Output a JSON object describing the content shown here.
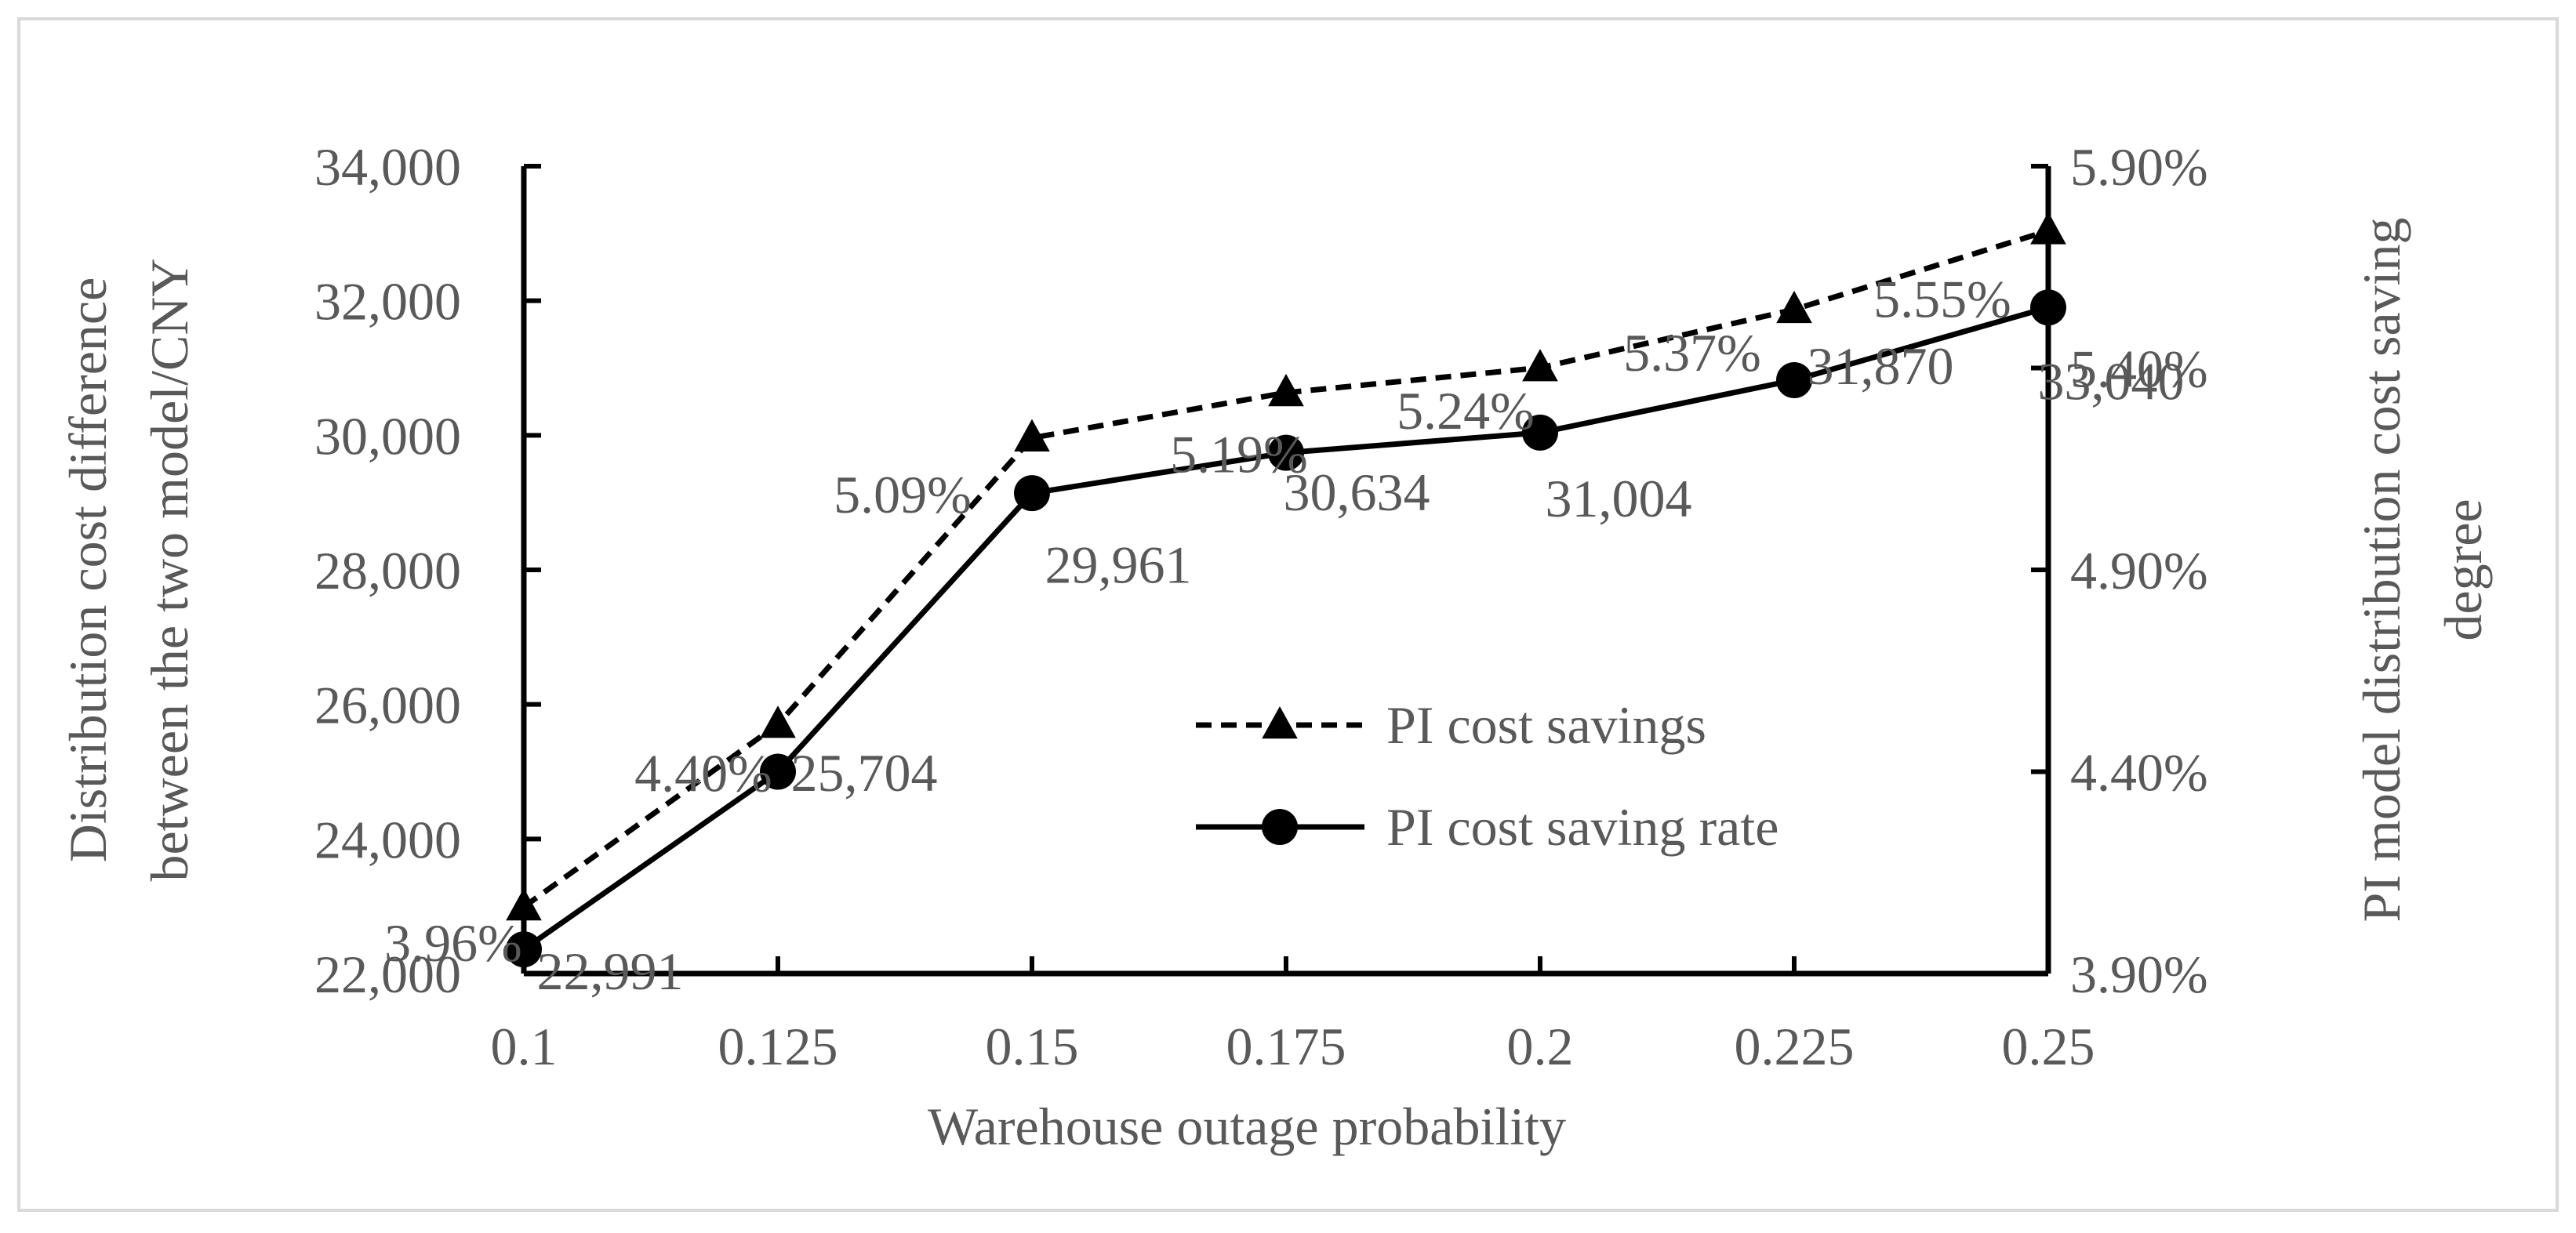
{
  "chart_data": {
    "type": "line",
    "categories": [
      "0.1",
      "0.125",
      "0.15",
      "0.175",
      "0.2",
      "0.225",
      "0.25"
    ],
    "xlabel": "Warehouse outage probability",
    "ylabel_left": "Distribution cost difference between the two model/CNY",
    "ylabel_left_lines": [
      "Distribution cost difference",
      "between the two model/CNY"
    ],
    "ylabel_right": "PI model distribution cost saving degree",
    "ylabel_right_lines": [
      "PI model distribution cost saving",
      "degree"
    ],
    "ylim_left": [
      22000,
      34000
    ],
    "yticks_left": [
      "22,000",
      "24,000",
      "26,000",
      "28,000",
      "30,000",
      "32,000",
      "34,000"
    ],
    "ylim_right": [
      0.039,
      0.059
    ],
    "yticks_right": [
      "3.90%",
      "4.40%",
      "4.90%",
      "5.40%",
      "5.90%"
    ],
    "grid": false,
    "legend_position": "center-right",
    "series": [
      {
        "name": "PI cost savings",
        "axis": "left",
        "marker": "triangle",
        "line": "dashed",
        "values": [
          22991,
          25704,
          29961,
          30634,
          31004,
          31870,
          33040
        ],
        "labels": [
          "22,991",
          "25,704",
          "29,961",
          "30,634",
          "31,004",
          "31,870",
          "33,040"
        ]
      },
      {
        "name": "PI cost saving rate",
        "axis": "right",
        "marker": "circle",
        "line": "solid",
        "values": [
          0.0396,
          0.044,
          0.0509,
          0.0519,
          0.0524,
          0.0537,
          0.0555
        ],
        "labels": [
          "3.96%",
          "4.40%",
          "5.09%",
          "5.19%",
          "5.24%",
          "5.37%",
          "5.55%"
        ]
      }
    ]
  }
}
